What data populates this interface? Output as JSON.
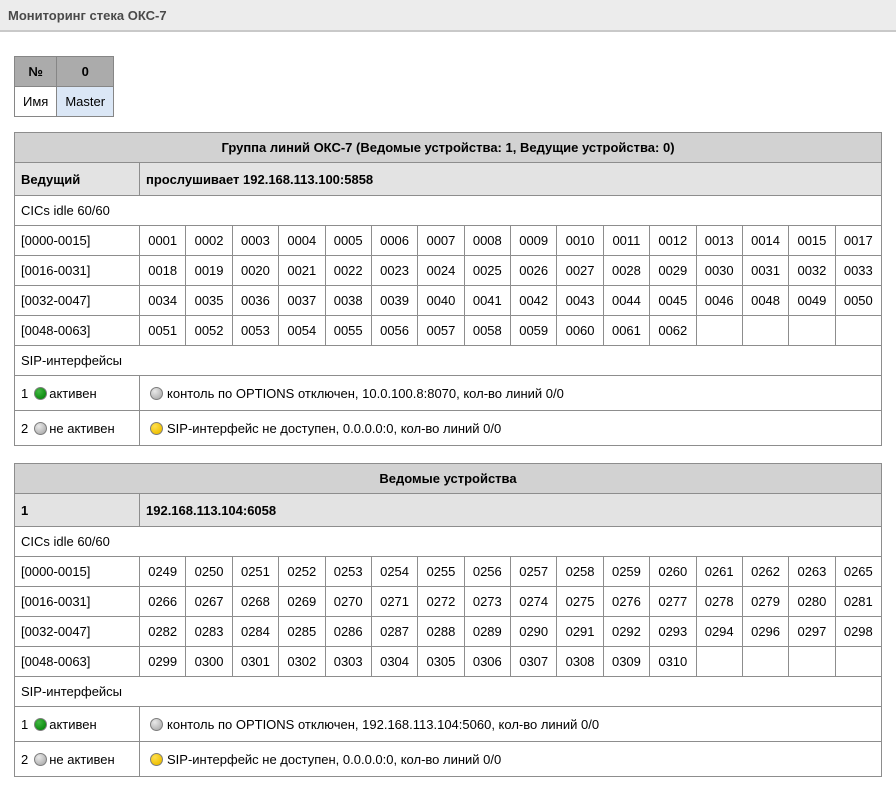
{
  "page": {
    "title": "Мониторинг стека ОКС-7"
  },
  "summary": {
    "number_label": "№",
    "number_value": "0",
    "name_label": "Имя",
    "name_value": "Master"
  },
  "colors": {
    "led_green": "#13930f",
    "led_gray": "#c2c2c2",
    "led_yellow": "#f3c402",
    "selected_device_highlight": "#dbe7f6",
    "table_title_bg": "#d2d2d2",
    "table_role_bg": "#e3e3e3"
  },
  "tables": [
    {
      "title": "Группа линий ОКС-7 (Ведомые устройства: 1, Ведущие устройства: 0)",
      "role_label": "Ведущий",
      "role_value": "прослушивает 192.168.113.100:5858",
      "cics_label": "CICs idle 60/60",
      "cic_rows": [
        {
          "range": "[0000-0015]",
          "values": [
            "0001",
            "0002",
            "0003",
            "0004",
            "0005",
            "0006",
            "0007",
            "0008",
            "0009",
            "0010",
            "0011",
            "0012",
            "0013",
            "0014",
            "0015",
            "0017"
          ]
        },
        {
          "range": "[0016-0031]",
          "values": [
            "0018",
            "0019",
            "0020",
            "0021",
            "0022",
            "0023",
            "0024",
            "0025",
            "0026",
            "0027",
            "0028",
            "0029",
            "0030",
            "0031",
            "0032",
            "0033"
          ]
        },
        {
          "range": "[0032-0047]",
          "values": [
            "0034",
            "0035",
            "0036",
            "0037",
            "0038",
            "0039",
            "0040",
            "0041",
            "0042",
            "0043",
            "0044",
            "0045",
            "0046",
            "0048",
            "0049",
            "0050"
          ]
        },
        {
          "range": "[0048-0063]",
          "values": [
            "0051",
            "0052",
            "0053",
            "0054",
            "0055",
            "0056",
            "0057",
            "0058",
            "0059",
            "0060",
            "0061",
            "0062"
          ]
        }
      ],
      "sip_label": "SIP-интерфейсы",
      "sip_rows": [
        {
          "num": "1",
          "state": "активен",
          "state_color": "green",
          "status_color": "gray",
          "status": "контоль по OPTIONS отключен, 10.0.100.8:8070, кол-во линий 0/0"
        },
        {
          "num": "2",
          "state": "не активен",
          "state_color": "gray",
          "status_color": "yellow",
          "status": "SIP-интерфейс не доступен, 0.0.0.0:0, кол-во линий 0/0"
        }
      ]
    },
    {
      "title": "Ведомые устройства",
      "role_label": "1",
      "role_value": "192.168.113.104:6058",
      "cics_label": "CICs idle 60/60",
      "cic_rows": [
        {
          "range": "[0000-0015]",
          "values": [
            "0249",
            "0250",
            "0251",
            "0252",
            "0253",
            "0254",
            "0255",
            "0256",
            "0257",
            "0258",
            "0259",
            "0260",
            "0261",
            "0262",
            "0263",
            "0265"
          ]
        },
        {
          "range": "[0016-0031]",
          "values": [
            "0266",
            "0267",
            "0268",
            "0269",
            "0270",
            "0271",
            "0272",
            "0273",
            "0274",
            "0275",
            "0276",
            "0277",
            "0278",
            "0279",
            "0280",
            "0281"
          ]
        },
        {
          "range": "[0032-0047]",
          "values": [
            "0282",
            "0283",
            "0284",
            "0285",
            "0286",
            "0287",
            "0288",
            "0289",
            "0290",
            "0291",
            "0292",
            "0293",
            "0294",
            "0296",
            "0297",
            "0298"
          ]
        },
        {
          "range": "[0048-0063]",
          "values": [
            "0299",
            "0300",
            "0301",
            "0302",
            "0303",
            "0304",
            "0305",
            "0306",
            "0307",
            "0308",
            "0309",
            "0310"
          ]
        }
      ],
      "sip_label": "SIP-интерфейсы",
      "sip_rows": [
        {
          "num": "1",
          "state": "активен",
          "state_color": "green",
          "status_color": "gray",
          "status": "контоль по OPTIONS отключен, 192.168.113.104:5060, кол-во линий 0/0"
        },
        {
          "num": "2",
          "state": "не активен",
          "state_color": "gray",
          "status_color": "yellow",
          "status": "SIP-интерфейс не доступен, 0.0.0.0:0, кол-во линий 0/0"
        }
      ]
    }
  ]
}
